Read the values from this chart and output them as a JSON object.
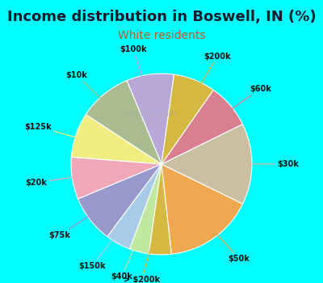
{
  "title": "Income distribution in Boswell, IN (%)",
  "subtitle": "White residents",
  "bg_color": "#00FFFF",
  "chart_bg_colors": [
    "#e8f5f0",
    "#d0ece0"
  ],
  "labels": [
    "$100k",
    "$10k",
    "$125k",
    "$20k",
    "$75k",
    "$150k",
    "$40k",
    "> $200k",
    "$50k",
    "$30k",
    "$60k",
    "$200k"
  ],
  "sizes": [
    8.5,
    9.5,
    8.0,
    7.5,
    8.5,
    4.5,
    3.5,
    4.0,
    16.0,
    14.5,
    8.0,
    7.5
  ],
  "colors": [
    "#b8a8d8",
    "#a8bc90",
    "#f0ee80",
    "#f0a8b8",
    "#9898cc",
    "#a8cce8",
    "#c0e8a0",
    "#d4b840",
    "#f0a850",
    "#c8c0a0",
    "#d88090",
    "#d4b840"
  ],
  "startangle": 82,
  "title_fontsize": 13,
  "subtitle_fontsize": 10,
  "subtitle_color": "#b06030",
  "label_fontsize": 7
}
